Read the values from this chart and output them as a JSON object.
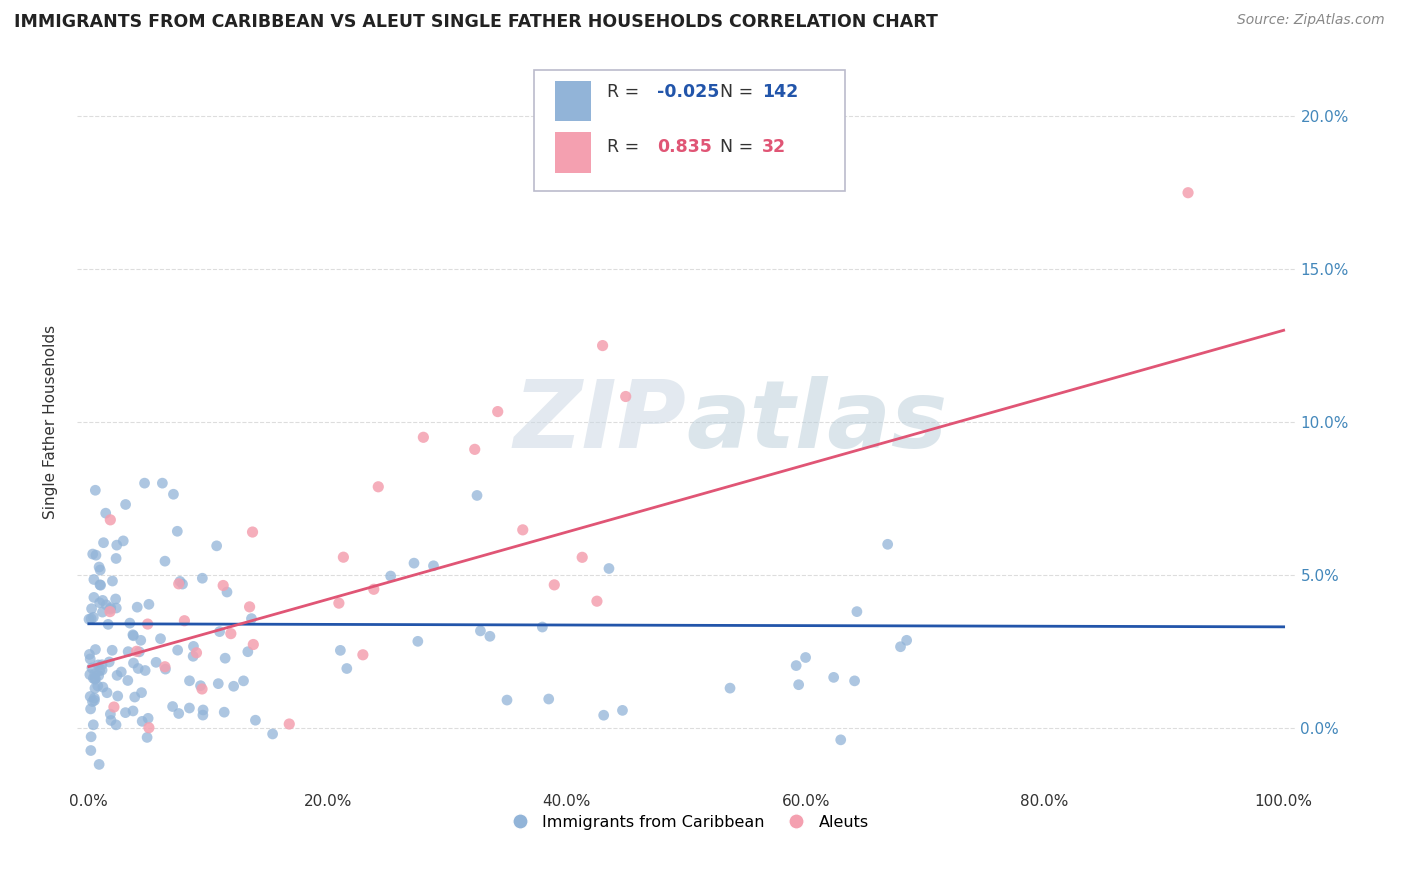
{
  "title": "IMMIGRANTS FROM CARIBBEAN VS ALEUT SINGLE FATHER HOUSEHOLDS CORRELATION CHART",
  "source": "Source: ZipAtlas.com",
  "xlabel_caribbean": "Immigrants from Caribbean",
  "xlabel_aleuts": "Aleuts",
  "ylabel": "Single Father Households",
  "r_caribbean": -0.025,
  "n_caribbean": 142,
  "r_aleuts": 0.835,
  "n_aleuts": 32,
  "color_caribbean": "#92b4d8",
  "color_aleuts": "#f4a0b0",
  "trendline_caribbean": "#2255aa",
  "trendline_aleuts": "#e05575",
  "watermark_color": "#d0dde8",
  "background": "#ffffff",
  "xlim": [
    0.0,
    1.0
  ],
  "ylim": [
    -0.02,
    0.22
  ],
  "yticks": [
    0.0,
    0.05,
    0.1,
    0.15,
    0.2
  ],
  "ytick_labels": [
    "0.0%",
    "5.0%",
    "10.0%",
    "15.0%",
    "20.0%"
  ],
  "xticks": [
    0.0,
    0.2,
    0.4,
    0.6,
    0.8,
    1.0
  ],
  "xtick_labels": [
    "0.0%",
    "20.0%",
    "40.0%",
    "60.0%",
    "80.0%",
    "100.0%"
  ],
  "legend_r_carib_color": "#2255aa",
  "legend_r_aleut_color": "#e05575",
  "legend_n_color": "#2255aa",
  "legend_box_color": "#aaaacc"
}
